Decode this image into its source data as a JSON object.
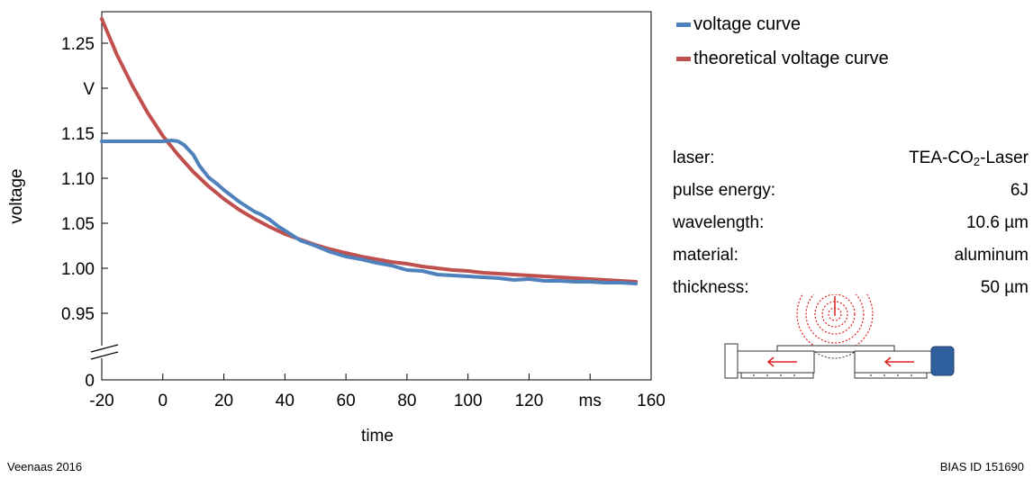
{
  "chart_data": {
    "type": "line",
    "xlabel": "time",
    "ylabel": "voltage",
    "x_ticks": [
      "-20",
      "0",
      "20",
      "40",
      "60",
      "80",
      "100",
      "120",
      "ms",
      "160"
    ],
    "y_ticks": [
      "0",
      "0.95",
      "1.00",
      "1.05",
      "1.10",
      "1.15",
      "V",
      "1.25"
    ],
    "xlim": [
      -20,
      160
    ],
    "ylim": [
      0.93,
      1.285
    ],
    "axis_break": "between 0 and 0.95",
    "grid": false,
    "legend_position": "top-right",
    "series": [
      {
        "name": "voltage curve",
        "color": "#4f81bd",
        "x": [
          -20,
          -10,
          0,
          3,
          5,
          7,
          10,
          12,
          15,
          18,
          20,
          25,
          30,
          32,
          35,
          38,
          40,
          45,
          50,
          55,
          60,
          65,
          70,
          75,
          80,
          85,
          90,
          95,
          100,
          105,
          110,
          115,
          120,
          125,
          130,
          135,
          140,
          145,
          150,
          155
        ],
        "y": [
          1.141,
          1.141,
          1.141,
          1.142,
          1.141,
          1.137,
          1.126,
          1.114,
          1.101,
          1.093,
          1.087,
          1.074,
          1.063,
          1.06,
          1.054,
          1.046,
          1.042,
          1.031,
          1.025,
          1.018,
          1.013,
          1.01,
          1.006,
          1.003,
          0.998,
          0.997,
          0.993,
          0.992,
          0.991,
          0.99,
          0.989,
          0.987,
          0.988,
          0.986,
          0.986,
          0.985,
          0.985,
          0.984,
          0.984,
          0.983
        ]
      },
      {
        "name": "theoretical voltage curve",
        "color": "#c0504d",
        "x": [
          -20,
          -15,
          -10,
          -5,
          0,
          5,
          10,
          15,
          20,
          25,
          30,
          35,
          40,
          45,
          50,
          55,
          60,
          65,
          70,
          75,
          80,
          85,
          90,
          95,
          100,
          105,
          110,
          115,
          120,
          125,
          130,
          135,
          140,
          145,
          150,
          155
        ],
        "y": [
          1.277,
          1.237,
          1.203,
          1.173,
          1.147,
          1.126,
          1.107,
          1.091,
          1.077,
          1.065,
          1.055,
          1.046,
          1.038,
          1.032,
          1.026,
          1.021,
          1.017,
          1.013,
          1.01,
          1.007,
          1.005,
          1.002,
          1.0,
          0.998,
          0.997,
          0.995,
          0.994,
          0.993,
          0.992,
          0.991,
          0.99,
          0.989,
          0.988,
          0.987,
          0.986,
          0.985
        ]
      }
    ]
  },
  "legend": {
    "items": [
      {
        "label": "voltage curve",
        "color": "#4f81bd"
      },
      {
        "label": "theoretical voltage curve",
        "color": "#c0504d"
      }
    ]
  },
  "specs": {
    "laser_label": "laser:",
    "laser_value_pre": "TEA-CO",
    "laser_value_sub": "2",
    "laser_value_post": "-Laser",
    "pulse_label": "pulse energy:",
    "pulse_value": "6J",
    "wavelength_label": "wavelength:",
    "wavelength_value": "10.6 µm",
    "material_label": "material:",
    "material_value": "aluminum",
    "thickness_label": "thickness:",
    "thickness_value": "50 µm"
  },
  "footer": {
    "left": "Veenaas 2016",
    "right": "BIAS ID 151690"
  }
}
